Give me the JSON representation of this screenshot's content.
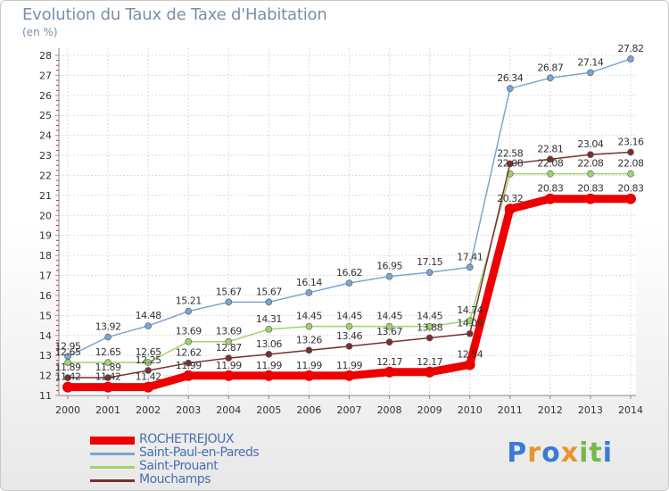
{
  "title": "Evolution du Taux de Taxe d'Habitation",
  "subtitle": "(en %)",
  "logo": {
    "text": "Proxiti",
    "colors": [
      "#3b7bd6",
      "#e9932a",
      "#3b7bd6",
      "#e9932a",
      "#74b84a",
      "#74b84a",
      "#3b7bd6"
    ]
  },
  "chart_data": {
    "type": "line",
    "x": [
      2000,
      2001,
      2002,
      2003,
      2004,
      2005,
      2006,
      2007,
      2008,
      2009,
      2010,
      2011,
      2012,
      2013,
      2014
    ],
    "ylim": [
      11,
      28
    ],
    "yticks": [
      11,
      12,
      13,
      14,
      15,
      16,
      17,
      18,
      19,
      20,
      21,
      22,
      23,
      24,
      25,
      26,
      27,
      28
    ],
    "grid": true,
    "legend_position": "bottom-left",
    "series": [
      {
        "name": "ROCHETREJOUX",
        "color": "#ee0000",
        "values": [
          11.42,
          11.42,
          11.42,
          11.99,
          11.99,
          11.99,
          11.99,
          11.99,
          12.17,
          12.17,
          12.54,
          20.32,
          20.83,
          20.83,
          20.83
        ],
        "labels": [
          "11.42",
          "11.42",
          "11.42",
          "11.99",
          "11.99",
          "11.99",
          "11.99",
          "11.99",
          "12.17",
          "12.17",
          "12.54",
          "20.32",
          "20.83",
          "20.83",
          "20.83"
        ]
      },
      {
        "name": "Saint-Paul-en-Pareds",
        "color": "#7aa6d2",
        "values": [
          12.95,
          13.92,
          14.48,
          15.21,
          15.67,
          15.67,
          16.14,
          16.62,
          16.95,
          17.15,
          17.41,
          26.34,
          26.87,
          27.14,
          27.82
        ],
        "labels": [
          "12.95",
          "13.92",
          "14.48",
          "15.21",
          "15.67",
          "15.67",
          "16.14",
          "16.62",
          "16.95",
          "17.15",
          "17.41",
          "26.34",
          "26.87",
          "27.14",
          "27.82"
        ]
      },
      {
        "name": "Saint-Prouant",
        "color": "#9ed36b",
        "values": [
          12.65,
          12.65,
          12.65,
          13.69,
          13.69,
          14.31,
          14.45,
          14.45,
          14.45,
          14.45,
          14.74,
          22.08,
          22.08,
          22.08,
          22.08
        ],
        "labels": [
          "12.65",
          "12.65",
          "12.65",
          "13.69",
          "13.69",
          "14.31",
          "14.45",
          "14.45",
          "14.45",
          "14.45",
          "14.74",
          "22.08",
          "22.08",
          "22.08",
          "22.08"
        ]
      },
      {
        "name": "Mouchamps",
        "color": "#7a2f2f",
        "values": [
          11.89,
          11.89,
          12.25,
          12.62,
          12.87,
          13.06,
          13.26,
          13.46,
          13.67,
          13.88,
          14.09,
          22.58,
          22.81,
          23.04,
          23.16
        ],
        "labels": [
          "11.89",
          "11.89",
          "12.25",
          "12.62",
          "12.87",
          "13.06",
          "13.26",
          "13.46",
          "13.67",
          "13.88",
          "14.09",
          "22.58",
          "22.81",
          "23.04",
          "23.16"
        ]
      }
    ]
  }
}
